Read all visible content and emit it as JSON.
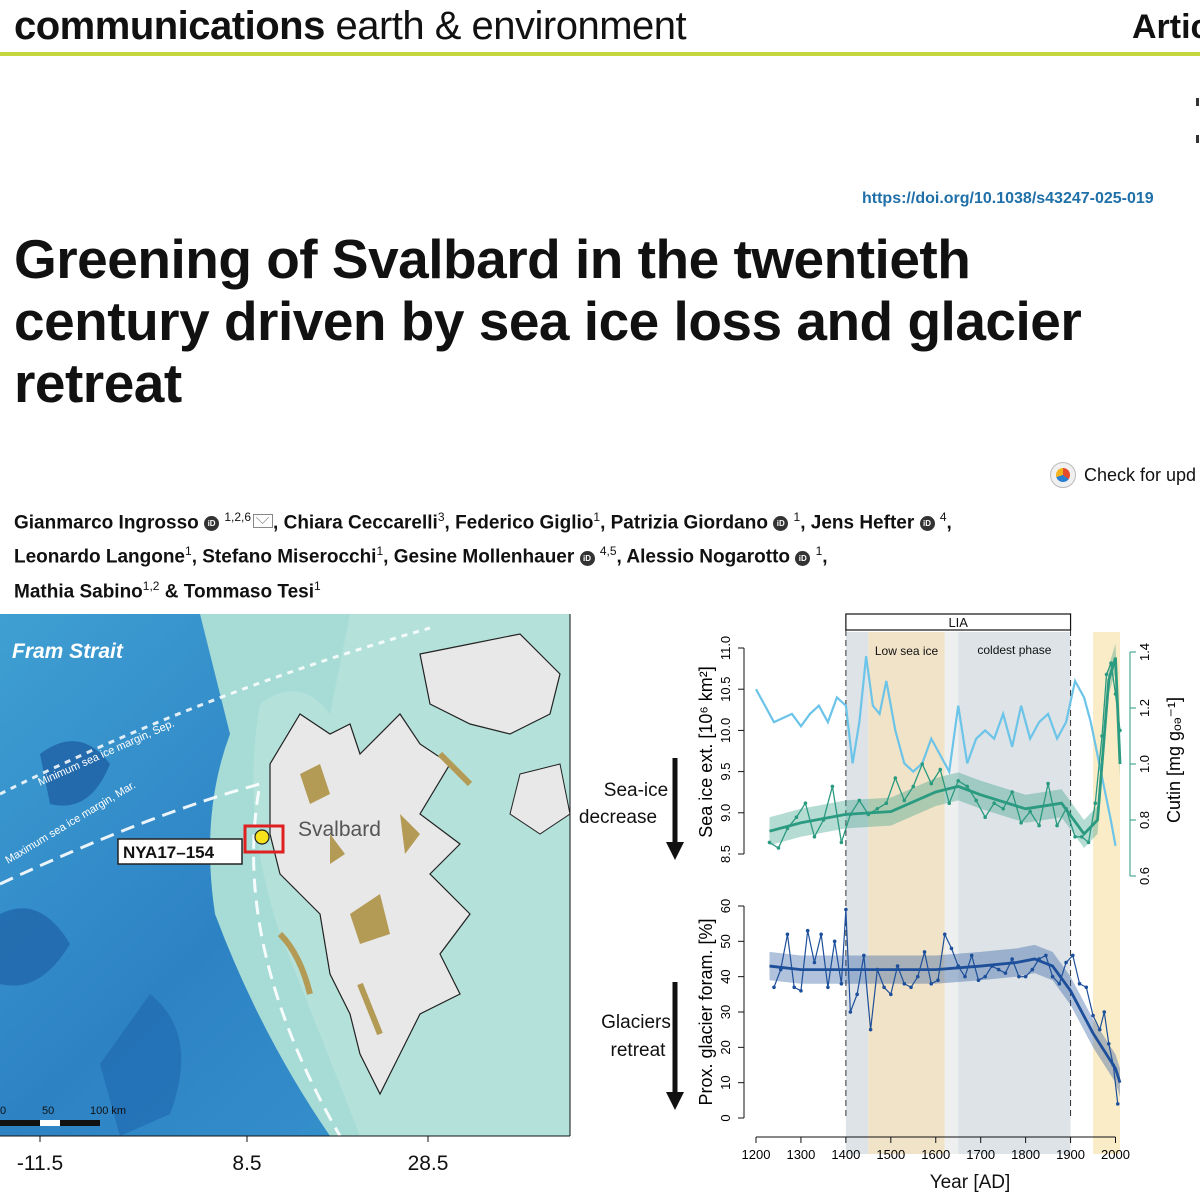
{
  "header": {
    "journal_bold": "communications",
    "journal_rest": " earth & environment",
    "article_label": "Artic",
    "doi": "https://doi.org/10.1038/s43247-025-019"
  },
  "title_lines": [
    "Greening of Svalbard in the twentieth",
    "century driven by sea ice loss and glacier",
    "retreat"
  ],
  "check_updates": "Check for upd",
  "authors": [
    {
      "name": "Gianmarco Ingrosso",
      "sup": "1,2,6",
      "orcid": true,
      "mail": true,
      "sep": ", "
    },
    {
      "name": "Chiara Ceccarelli",
      "sup": "3",
      "orcid": false,
      "mail": false,
      "sep": ", "
    },
    {
      "name": "Federico Giglio",
      "sup": "1",
      "orcid": false,
      "mail": false,
      "sep": ", "
    },
    {
      "name": "Patrizia Giordano",
      "sup": "1",
      "orcid": true,
      "mail": false,
      "sep": ", "
    },
    {
      "name": "Jens Hefter",
      "sup": "4",
      "orcid": true,
      "mail": false,
      "sep": ","
    },
    {
      "name": "Leonardo Langone",
      "sup": "1",
      "orcid": false,
      "mail": false,
      "sep": ", "
    },
    {
      "name": "Stefano Miserocchi",
      "sup": "1",
      "orcid": false,
      "mail": false,
      "sep": ", "
    },
    {
      "name": "Gesine Mollenhauer",
      "sup": "4,5",
      "orcid": true,
      "mail": false,
      "sep": ", "
    },
    {
      "name": "Alessio Nogarotto",
      "sup": "1",
      "orcid": true,
      "mail": false,
      "sep": ","
    },
    {
      "name": "Mathia Sabino",
      "sup": "1,2",
      "orcid": false,
      "mail": false,
      "sep": " & "
    },
    {
      "name": "Tommaso Tesi",
      "sup": "1",
      "orcid": false,
      "mail": false,
      "sep": ""
    }
  ],
  "author_line_breaks": [
    5,
    9
  ],
  "map": {
    "strait_label": "Fram Strait",
    "min_ice_label": "Minimum sea ice margin, Sep.",
    "max_ice_label": "Maximum sea ice margin, Mar.",
    "core_label": "NYA17–154",
    "region_label": "Svalbard",
    "scale_labels": [
      "0",
      "50",
      "100 km"
    ],
    "x_ticks": [
      "-11.5",
      "8.5",
      "28.5"
    ],
    "colors": {
      "ocean_deep": "#1f6fb5",
      "ocean_mid": "#4aa9d6",
      "shelf": "#a8dcd6",
      "land": "#e6e6e6",
      "moss": "#b39a55",
      "frame": "#e02020",
      "marker": "#f5e21a"
    }
  },
  "chart_data": [
    {
      "type": "line",
      "ylabel": "Sea ice ext. [10⁶ km²]",
      "y2label": "Cutin [mg gₒₔ⁻¹]",
      "ylim": [
        8.5,
        11.0
      ],
      "y2lim": [
        0.6,
        1.4
      ],
      "yticks": [
        "8.5",
        "9.0",
        "9.5",
        "10.0",
        "10.5",
        "11.0"
      ],
      "y2ticks": [
        "0.6",
        "0.8",
        "1.0",
        "1.2",
        "1.4"
      ],
      "side_label": [
        "Sea-ice",
        "decrease"
      ],
      "shading": [
        {
          "from": 1400,
          "to": 1450,
          "color": "#dde3e6"
        },
        {
          "from": 1450,
          "to": 1620,
          "color": "#f1e3c8",
          "label": "Low sea ice"
        },
        {
          "from": 1620,
          "to": 1650,
          "color": "#eef0f0"
        },
        {
          "from": 1650,
          "to": 1900,
          "color": "#dde3e6",
          "label": "coldest phase"
        },
        {
          "from": 1950,
          "to": 2010,
          "color": "#fbecc8"
        }
      ],
      "lia": {
        "label": "LIA",
        "from": 1400,
        "to": 1900
      },
      "dashed_years": [
        1400,
        1900
      ],
      "series": [
        {
          "axis": "left",
          "color": "#6cc4e8",
          "x": [
            1200,
            1220,
            1240,
            1260,
            1280,
            1300,
            1320,
            1340,
            1360,
            1380,
            1400,
            1415,
            1430,
            1445,
            1460,
            1475,
            1490,
            1510,
            1530,
            1550,
            1570,
            1590,
            1610,
            1630,
            1650,
            1670,
            1690,
            1710,
            1730,
            1750,
            1770,
            1790,
            1810,
            1830,
            1850,
            1870,
            1890,
            1910,
            1930,
            1945,
            1960,
            1975,
            1990,
            2000
          ],
          "y": [
            10.5,
            10.3,
            10.1,
            10.15,
            10.2,
            10.05,
            10.2,
            10.3,
            10.1,
            10.4,
            10.3,
            9.6,
            10.1,
            10.9,
            10.3,
            10.2,
            10.6,
            10.0,
            9.6,
            9.5,
            9.6,
            9.9,
            9.7,
            9.5,
            10.3,
            9.6,
            9.9,
            10.0,
            9.9,
            10.2,
            9.8,
            10.3,
            9.9,
            10.1,
            10.2,
            9.9,
            10.1,
            10.6,
            10.4,
            10.1,
            9.7,
            9.3,
            8.9,
            8.6
          ]
        },
        {
          "axis": "right",
          "color": "#2a9a80",
          "fit": true,
          "x": [
            1230,
            1250,
            1270,
            1290,
            1310,
            1330,
            1350,
            1370,
            1390,
            1410,
            1430,
            1450,
            1470,
            1490,
            1510,
            1530,
            1550,
            1570,
            1590,
            1610,
            1630,
            1650,
            1670,
            1690,
            1710,
            1730,
            1750,
            1770,
            1790,
            1810,
            1830,
            1850,
            1870,
            1890,
            1910,
            1925,
            1940,
            1955,
            1970,
            1980,
            1990,
            2000,
            2010
          ],
          "y": [
            0.72,
            0.7,
            0.77,
            0.81,
            0.86,
            0.74,
            0.8,
            0.92,
            0.72,
            0.82,
            0.87,
            0.82,
            0.84,
            0.86,
            0.95,
            0.87,
            0.92,
            1.0,
            0.93,
            0.98,
            0.86,
            0.94,
            0.92,
            0.87,
            0.81,
            0.86,
            0.84,
            0.9,
            0.79,
            0.83,
            0.78,
            0.93,
            0.78,
            0.84,
            0.74,
            0.74,
            0.72,
            0.86,
            1.1,
            1.32,
            1.36,
            1.25,
            1.12
          ]
        },
        {
          "axis": "right",
          "color": "#2a9a80",
          "fit_line": true,
          "x": [
            1230,
            1300,
            1400,
            1500,
            1600,
            1650,
            1700,
            1800,
            1880,
            1930,
            1960,
            1985,
            2000,
            2010
          ],
          "y": [
            0.76,
            0.79,
            0.82,
            0.83,
            0.9,
            0.92,
            0.89,
            0.84,
            0.86,
            0.75,
            0.8,
            1.3,
            1.38,
            1.0
          ]
        }
      ]
    },
    {
      "type": "line",
      "ylabel": "Prox. glacier foram. [%]",
      "ylim": [
        0,
        60
      ],
      "yticks": [
        "0",
        "10",
        "20",
        "30",
        "40",
        "50",
        "60"
      ],
      "xticks": [
        "1200",
        "1300",
        "1400",
        "1500",
        "1600",
        "1700",
        "1800",
        "1900",
        "2000"
      ],
      "xlabel": "Year [AD]",
      "xlim": [
        1200,
        2010
      ],
      "side_label": [
        "Glaciers",
        "retreat"
      ],
      "series": [
        {
          "color": "#1d4f9a",
          "x": [
            1240,
            1255,
            1270,
            1285,
            1300,
            1315,
            1330,
            1345,
            1360,
            1375,
            1390,
            1400,
            1410,
            1425,
            1440,
            1455,
            1470,
            1485,
            1500,
            1515,
            1530,
            1545,
            1560,
            1575,
            1590,
            1605,
            1620,
            1635,
            1650,
            1665,
            1680,
            1695,
            1710,
            1725,
            1740,
            1755,
            1770,
            1785,
            1800,
            1815,
            1830,
            1845,
            1860,
            1875,
            1890,
            1905,
            1920,
            1935,
            1950,
            1965,
            1975,
            1985,
            1995,
            2005
          ],
          "y": [
            37,
            42,
            52,
            37,
            36,
            53,
            44,
            52,
            37,
            50,
            38,
            59,
            30,
            35,
            46,
            25,
            42,
            37,
            35,
            43,
            38,
            37,
            40,
            47,
            38,
            39,
            52,
            48,
            43,
            40,
            46,
            39,
            40,
            43,
            42,
            41,
            45,
            40,
            40,
            42,
            45,
            46,
            40,
            38,
            44,
            46,
            38,
            37,
            29,
            25,
            30,
            21,
            15,
            4
          ]
        },
        {
          "color": "#1d4f9a",
          "fit_line": true,
          "x": [
            1230,
            1300,
            1400,
            1500,
            1600,
            1700,
            1780,
            1820,
            1860,
            1900,
            1950,
            2000,
            2010
          ],
          "y": [
            43,
            42,
            42,
            42,
            42,
            43,
            44,
            45,
            43,
            36,
            24,
            14,
            10
          ]
        }
      ]
    }
  ]
}
